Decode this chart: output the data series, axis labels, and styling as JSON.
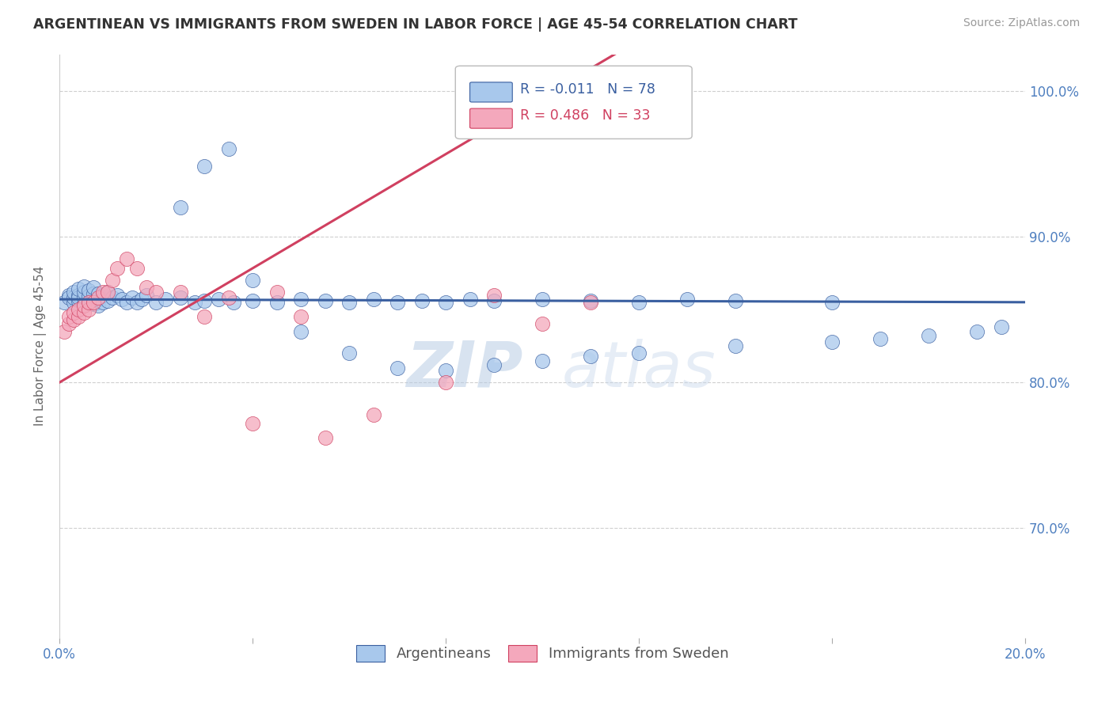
{
  "title": "ARGENTINEAN VS IMMIGRANTS FROM SWEDEN IN LABOR FORCE | AGE 45-54 CORRELATION CHART",
  "source": "Source: ZipAtlas.com",
  "ylabel": "In Labor Force | Age 45-54",
  "legend1_label": "Argentineans",
  "legend2_label": "Immigrants from Sweden",
  "r1": -0.011,
  "n1": 78,
  "r2": 0.486,
  "n2": 33,
  "color_blue": "#A8C8EC",
  "color_pink": "#F4A8BC",
  "line_blue": "#3A5FA0",
  "line_pink": "#D04060",
  "watermark_zip": "ZIP",
  "watermark_atlas": "atlas",
  "xmin": 0.0,
  "xmax": 0.2,
  "ymin": 0.625,
  "ymax": 1.025,
  "arg_x": [
    0.001,
    0.002,
    0.002,
    0.003,
    0.003,
    0.003,
    0.004,
    0.004,
    0.004,
    0.004,
    0.005,
    0.005,
    0.005,
    0.005,
    0.006,
    0.006,
    0.006,
    0.007,
    0.007,
    0.007,
    0.007,
    0.008,
    0.008,
    0.008,
    0.009,
    0.009,
    0.01,
    0.01,
    0.011,
    0.012,
    0.013,
    0.014,
    0.015,
    0.016,
    0.017,
    0.018,
    0.02,
    0.022,
    0.025,
    0.028,
    0.03,
    0.033,
    0.036,
    0.04,
    0.045,
    0.05,
    0.055,
    0.06,
    0.065,
    0.07,
    0.075,
    0.08,
    0.085,
    0.09,
    0.1,
    0.11,
    0.12,
    0.13,
    0.14,
    0.16,
    0.025,
    0.03,
    0.035,
    0.04,
    0.05,
    0.06,
    0.07,
    0.08,
    0.09,
    0.1,
    0.11,
    0.12,
    0.14,
    0.16,
    0.17,
    0.18,
    0.19,
    0.195
  ],
  "arg_y": [
    0.855,
    0.86,
    0.858,
    0.855,
    0.858,
    0.862,
    0.856,
    0.86,
    0.858,
    0.864,
    0.854,
    0.858,
    0.862,
    0.866,
    0.855,
    0.859,
    0.863,
    0.854,
    0.857,
    0.861,
    0.865,
    0.853,
    0.857,
    0.861,
    0.855,
    0.86,
    0.856,
    0.862,
    0.858,
    0.86,
    0.857,
    0.855,
    0.858,
    0.855,
    0.857,
    0.86,
    0.855,
    0.857,
    0.858,
    0.855,
    0.856,
    0.857,
    0.855,
    0.856,
    0.855,
    0.857,
    0.856,
    0.855,
    0.857,
    0.855,
    0.856,
    0.855,
    0.857,
    0.856,
    0.857,
    0.856,
    0.855,
    0.857,
    0.856,
    0.855,
    0.92,
    0.948,
    0.96,
    0.87,
    0.835,
    0.82,
    0.81,
    0.808,
    0.812,
    0.815,
    0.818,
    0.82,
    0.825,
    0.828,
    0.83,
    0.832,
    0.835,
    0.838
  ],
  "swe_x": [
    0.001,
    0.002,
    0.002,
    0.003,
    0.003,
    0.004,
    0.004,
    0.005,
    0.005,
    0.006,
    0.006,
    0.007,
    0.008,
    0.009,
    0.01,
    0.011,
    0.012,
    0.014,
    0.016,
    0.018,
    0.02,
    0.025,
    0.03,
    0.035,
    0.04,
    0.045,
    0.05,
    0.055,
    0.065,
    0.08,
    0.09,
    0.1,
    0.11
  ],
  "swe_y": [
    0.835,
    0.84,
    0.845,
    0.843,
    0.848,
    0.845,
    0.85,
    0.848,
    0.853,
    0.85,
    0.855,
    0.855,
    0.858,
    0.862,
    0.862,
    0.87,
    0.878,
    0.885,
    0.878,
    0.865,
    0.862,
    0.862,
    0.845,
    0.858,
    0.772,
    0.862,
    0.845,
    0.762,
    0.778,
    0.8,
    0.86,
    0.84,
    0.855
  ],
  "blue_line_x": [
    0.0,
    0.2
  ],
  "blue_line_y": [
    0.857,
    0.855
  ],
  "pink_line_x0": 0.0,
  "pink_line_y0": 0.8,
  "pink_line_x1": 0.115,
  "pink_line_y1": 1.025
}
